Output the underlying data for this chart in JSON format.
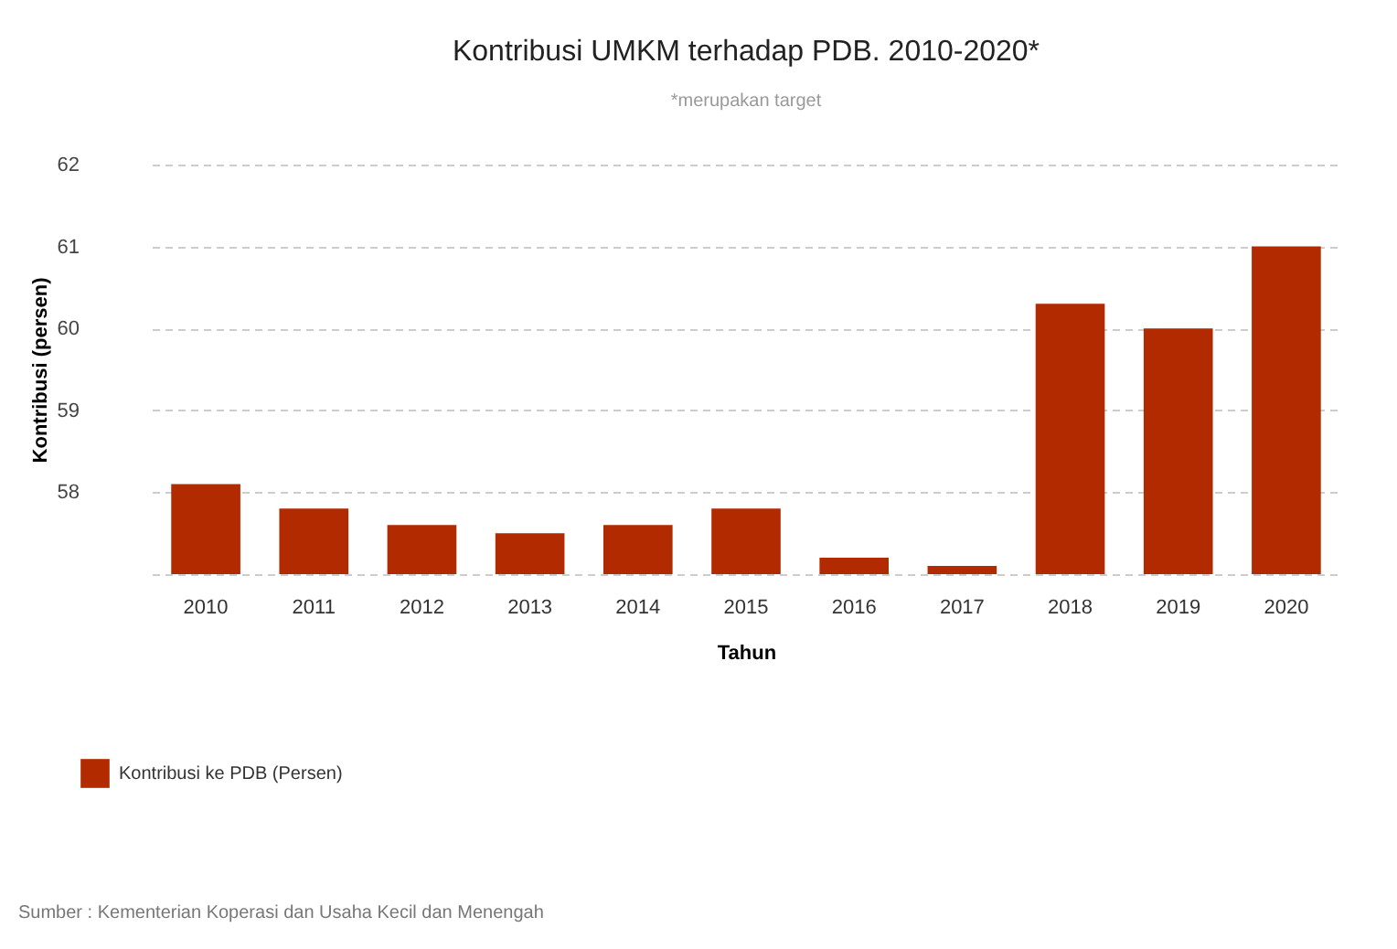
{
  "chart_data": {
    "type": "bar",
    "title": "Kontribusi UMKM terhadap PDB. 2010-2020*",
    "subtitle": "*merupakan target",
    "xlabel": "Tahun",
    "ylabel": "Kontribusi (persen)",
    "categories": [
      "2010",
      "2011",
      "2012",
      "2013",
      "2014",
      "2015",
      "2016",
      "2017",
      "2018",
      "2019",
      "2020"
    ],
    "series": [
      {
        "name": "Kontribusi ke PDB (Persen)",
        "color": "#b22a00",
        "values": [
          58.1,
          57.8,
          57.6,
          57.5,
          57.6,
          57.8,
          57.2,
          57.1,
          60.3,
          60.0,
          61.0
        ]
      }
    ],
    "ylim": [
      57,
      62
    ],
    "yticks": [
      {
        "value": 57,
        "label": null
      },
      58,
      59,
      60,
      61,
      62
    ],
    "grid": "y",
    "legend": "bottom left",
    "annotations": [
      "Sumber : Kementerian Koperasi dan Usaha Kecil dan Menengah"
    ]
  }
}
